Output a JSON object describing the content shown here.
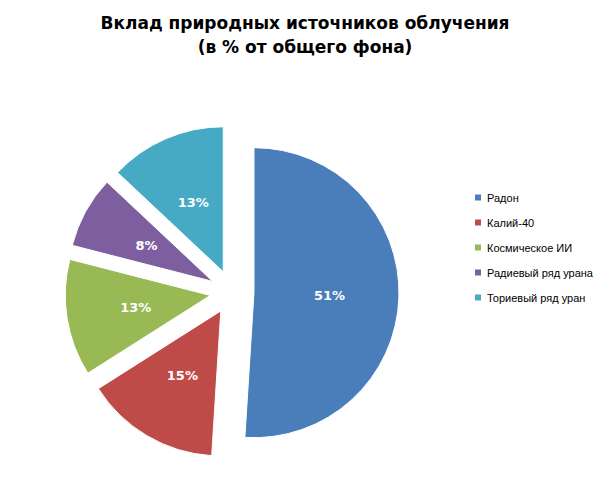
{
  "chart_data": {
    "type": "pie",
    "title": "Вклад природных источников облучения\n(в % от общего фона)",
    "categories": [
      "Радон",
      "Калий-40",
      "Космическое ИИ",
      "Радиевый ряд урана",
      "Ториевый ряд уран"
    ],
    "values": [
      51,
      15,
      13,
      8,
      13
    ],
    "value_labels": [
      "51%",
      "15%",
      "13%",
      "8%",
      "13%"
    ],
    "colors": [
      "#4a7ebb",
      "#be4b48",
      "#98b954",
      "#7d5fa0",
      "#46aac5"
    ],
    "data_labels": true,
    "legend": "right"
  }
}
